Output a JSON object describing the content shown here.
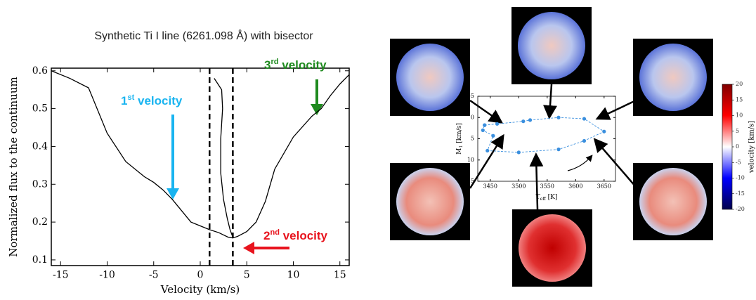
{
  "chart_data": [
    {
      "type": "line",
      "title": "Synthetic Ti I line (6261.098 Å) with bisector",
      "xlabel": "Velocity (km/s)",
      "ylabel": "Normalized flux to the continuum",
      "xlim": [
        -16,
        16
      ],
      "xticks": [
        -15,
        -10,
        -5,
        0,
        5,
        10,
        15
      ],
      "ylim": [
        0.085,
        0.607
      ],
      "yticks": [
        0.1,
        0.2,
        0.3,
        0.4,
        0.5,
        0.6
      ],
      "vlines": [
        1,
        3.5
      ],
      "series": [
        {
          "color": "#000000",
          "x": [
            -16,
            -14,
            -12,
            -10,
            -8,
            -6,
            -5,
            -4,
            -3,
            -2,
            -1,
            0,
            1,
            2,
            3,
            3.5,
            4,
            5,
            6,
            7,
            8,
            10,
            12,
            13,
            14,
            15,
            16
          ],
          "values": [
            0.6,
            0.58,
            0.555,
            0.435,
            0.36,
            0.32,
            0.305,
            0.285,
            0.26,
            0.23,
            0.2,
            0.19,
            0.18,
            0.172,
            0.16,
            0.158,
            0.162,
            0.175,
            0.2,
            0.255,
            0.34,
            0.425,
            0.48,
            0.5,
            0.535,
            0.565,
            0.59
          ]
        },
        {
          "color": "#000000",
          "x": [
            1.5,
            2.3,
            2.4,
            2.2,
            2.2,
            2.5,
            2.9,
            3.2,
            3.5
          ],
          "values": [
            0.58,
            0.55,
            0.5,
            0.42,
            0.33,
            0.26,
            0.21,
            0.18,
            0.16
          ]
        }
      ],
      "annotations": [
        {
          "num": "1",
          "sup": "st",
          "text": " velocity",
          "color": "#19b4f0"
        },
        {
          "num": "3",
          "sup": "rd",
          "text": " velocity",
          "color": "#1e8a1e"
        },
        {
          "num": "2",
          "sup": "nd",
          "text": " velocity",
          "color": "#e8141e"
        }
      ]
    },
    {
      "type": "line",
      "xlabel": {
        "main": "T",
        "sub": "eff",
        "rest": " [K]"
      },
      "ylabel": {
        "main": "M",
        "sub": "1",
        "rest": " [km/s]"
      },
      "xlim": [
        3428,
        3670
      ],
      "xticks": [
        3450,
        3500,
        3550,
        3600,
        3650
      ],
      "ylim": [
        -5,
        15
      ],
      "yticks": [
        -5,
        0,
        5,
        10,
        15
      ],
      "y_inverted": true,
      "series": [
        {
          "color": "#3a8fde",
          "x": [
            3440,
            3462,
            3508,
            3520,
            3570,
            3615,
            3650,
            3615,
            3570,
            3500,
            3445,
            3455,
            3437,
            3440
          ],
          "values": [
            1.8,
            1.5,
            0.9,
            0.6,
            0.0,
            0.3,
            3.3,
            5.5,
            7.5,
            8.2,
            7.8,
            4.3,
            3.0,
            1.8
          ]
        }
      ]
    },
    {
      "type": "colorbar",
      "label": "velocity [km/s]",
      "ylim": [
        -20,
        20
      ],
      "yticks": [
        -20,
        -15,
        -10,
        -5,
        0,
        5,
        10,
        15,
        20
      ],
      "colors": [
        "#00004c",
        "#0000ff",
        "#ffffff",
        "#ff0000",
        "#800000"
      ]
    }
  ]
}
